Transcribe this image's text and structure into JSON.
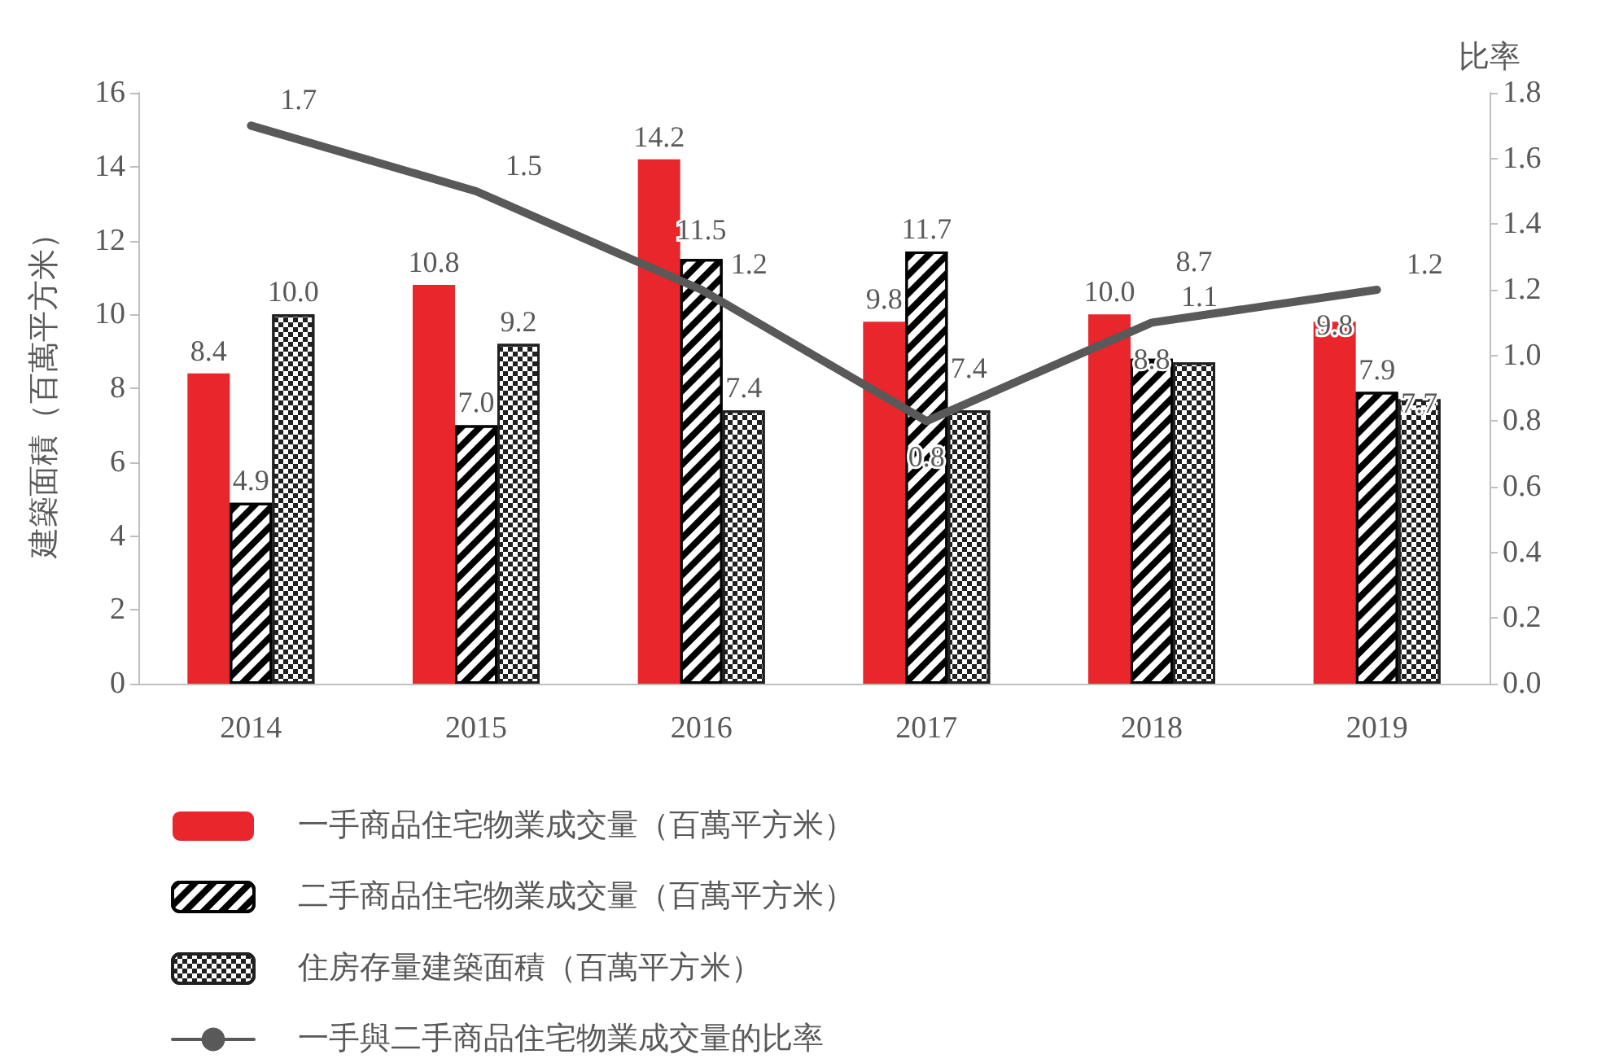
{
  "chart_data": {
    "type": "bar",
    "categories": [
      "2014",
      "2015",
      "2016",
      "2017",
      "2018",
      "2019"
    ],
    "ylabel": "建築面積（百萬平方米）",
    "y2label": "比率",
    "ylim": [
      0,
      16
    ],
    "yticks": [
      0,
      2,
      4,
      6,
      8,
      10,
      12,
      14,
      16
    ],
    "y2lim": [
      0,
      1.8
    ],
    "y2ticks": [
      {
        "value": 0,
        "label": "0.0"
      },
      0.2,
      0.4,
      0.6,
      0.8,
      {
        "value": 1,
        "label": "1.0"
      },
      1.2,
      1.4,
      1.6,
      1.8
    ],
    "grid": false,
    "legend": "bottom",
    "series": [
      {
        "name": "一手商品住宅物業成交量（百萬平方米）",
        "color": "#e8262b",
        "values": [
          8.4,
          10.8,
          14.2,
          9.8,
          10.0,
          9.8
        ],
        "value_labels": [
          "8.4",
          "10.8",
          "14.2",
          "9.8",
          "10.0",
          "9.8"
        ]
      },
      {
        "name": "二手商品住宅物業成交量（百萬平方米）",
        "color": "#000000",
        "values": [
          4.9,
          7.0,
          11.5,
          11.7,
          8.8,
          7.9
        ],
        "value_labels": [
          "4.9",
          "7.0",
          "11.5",
          "11.7",
          "8.8",
          "7.9"
        ]
      },
      {
        "name": "住房存量建築面積（百萬平方米）",
        "color": "#202020",
        "values": [
          10.0,
          9.2,
          7.4,
          7.4,
          8.7,
          7.7
        ],
        "value_labels": [
          "10.0",
          "9.2",
          "7.4",
          "7.4",
          "8.7",
          "7.7"
        ]
      },
      {
        "name": "一手與二手商品住宅物業成交量的比率",
        "type": "line",
        "axis": "y2",
        "color": "#595959",
        "marker": "none",
        "values": [
          1.7,
          1.5,
          1.2,
          0.8,
          1.1,
          1.2
        ],
        "value_labels": [
          "1.7",
          "1.5",
          "1.2",
          "0.8",
          "1.1",
          "1.2"
        ]
      }
    ]
  }
}
